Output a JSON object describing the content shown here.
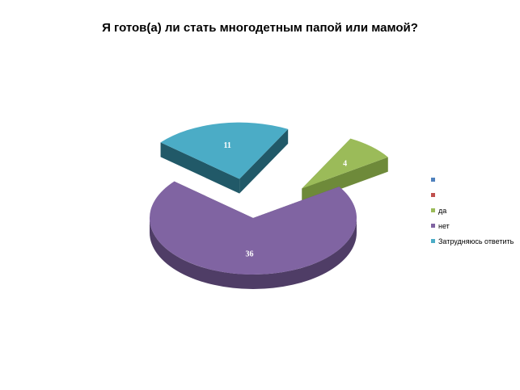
{
  "chart_data": {
    "type": "pie",
    "title": "Я готов(а) ли стать многодетным папой или мамой?",
    "slices": [
      {
        "label": "да",
        "value": 4,
        "color": "#9BBB59",
        "side_color": "#6E8A3A",
        "exploded": true
      },
      {
        "label": "нет",
        "value": 36,
        "color": "#8064A2",
        "side_color": "#4F3D66",
        "exploded": false
      },
      {
        "label": "Затрудняюсь ответить",
        "value": 11,
        "color": "#4BACC6",
        "side_color": "#215968",
        "exploded": true
      }
    ],
    "legend": {
      "placement": "right",
      "entries": [
        {
          "label": "",
          "color": "#4F81BD"
        },
        {
          "label": "",
          "color": "#C0504D"
        },
        {
          "label": "да",
          "color": "#9BBB59"
        },
        {
          "label": "нет",
          "color": "#8064A2"
        },
        {
          "label": "Затрудняюсь ответить",
          "color": "#4BACC6"
        }
      ]
    },
    "data_labels": true,
    "style": "3d-exploded"
  }
}
